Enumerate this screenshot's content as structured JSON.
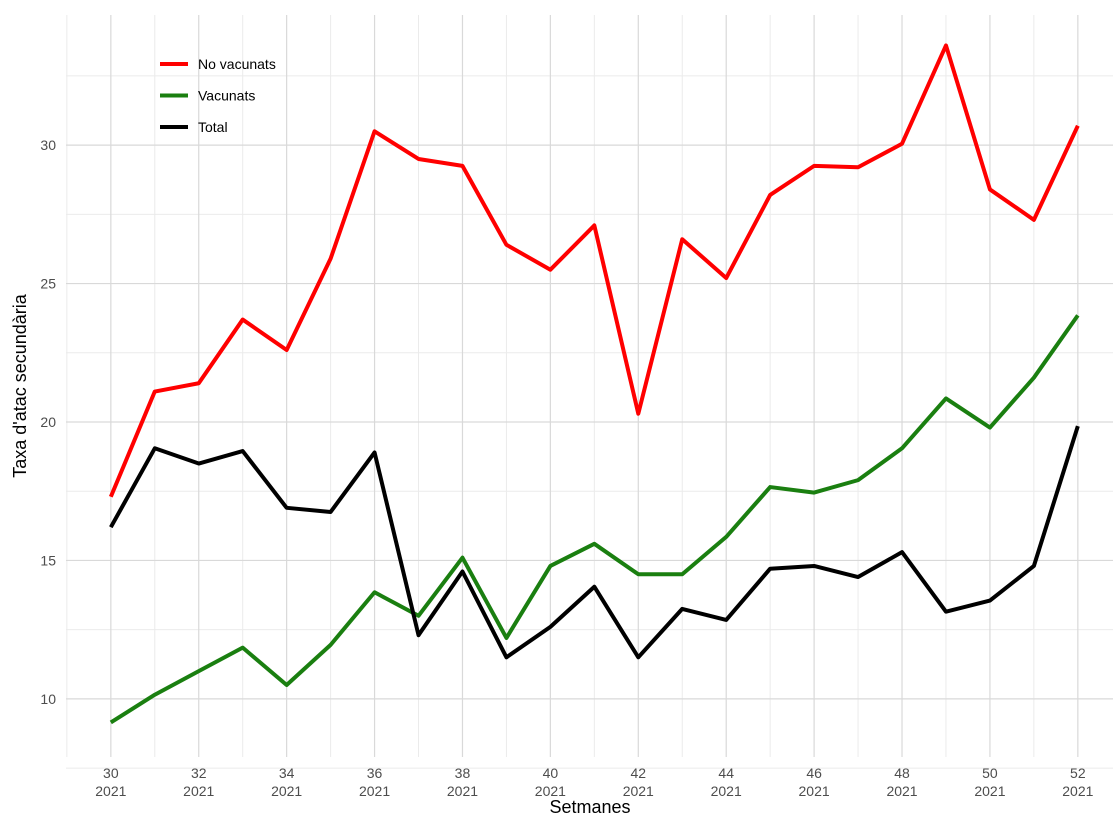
{
  "chart_data": {
    "type": "line",
    "x_label": "Setmanes",
    "y_label": "Taxa d'atac secundària",
    "x": [
      30,
      31,
      32,
      33,
      34,
      35,
      36,
      37,
      38,
      39,
      40,
      41,
      42,
      43,
      44,
      45,
      46,
      47,
      48,
      49,
      50,
      51,
      52
    ],
    "series": [
      {
        "name": "No vacunats",
        "color": "#ff0000",
        "values": [
          17.3,
          21.1,
          21.4,
          23.7,
          22.6,
          25.9,
          30.5,
          29.5,
          29.25,
          26.4,
          25.5,
          27.1,
          20.3,
          26.6,
          25.2,
          28.2,
          29.25,
          29.2,
          30.05,
          33.6,
          28.4,
          27.3,
          30.7
        ]
      },
      {
        "name": "Vacunats",
        "color": "#1a7f10",
        "values": [
          9.15,
          10.15,
          11.0,
          11.85,
          10.5,
          11.95,
          13.85,
          13.0,
          15.1,
          12.2,
          14.8,
          15.6,
          14.5,
          14.5,
          15.85,
          17.65,
          17.45,
          17.9,
          19.05,
          20.85,
          19.8,
          21.6,
          23.85
        ]
      },
      {
        "name": "Total",
        "color": "#000000",
        "values": [
          16.2,
          19.05,
          18.5,
          18.95,
          16.9,
          16.75,
          18.9,
          12.3,
          14.6,
          11.5,
          12.6,
          14.05,
          11.5,
          13.25,
          12.85,
          14.7,
          14.8,
          14.4,
          15.3,
          13.15,
          13.55,
          14.8,
          19.85
        ]
      }
    ],
    "xlim": [
      28.98,
      52.8
    ],
    "ylim": [
      7.9,
      34.7
    ],
    "xticks": [
      {
        "value": 30,
        "label": "30\n2021"
      },
      {
        "value": 32,
        "label": "32\n2021"
      },
      {
        "value": 34,
        "label": "34\n2021"
      },
      {
        "value": 36,
        "label": "36\n2021"
      },
      {
        "value": 38,
        "label": "38\n2021"
      },
      {
        "value": 40,
        "label": "40\n2021"
      },
      {
        "value": 42,
        "label": "42\n2021"
      },
      {
        "value": 44,
        "label": "44\n2021"
      },
      {
        "value": 46,
        "label": "46\n2021"
      },
      {
        "value": 48,
        "label": "48\n2021"
      },
      {
        "value": 50,
        "label": "50\n2021"
      },
      {
        "value": 52,
        "label": "52\n2021"
      }
    ],
    "yticks": [
      10,
      15,
      20,
      25,
      30
    ],
    "grid": true,
    "legend": "top-left"
  }
}
